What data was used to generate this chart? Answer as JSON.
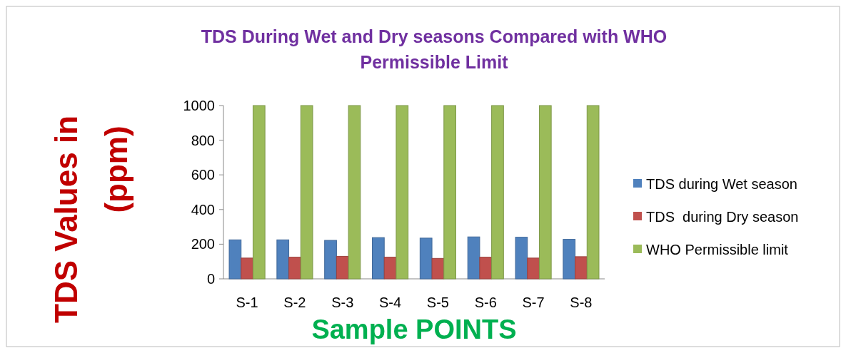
{
  "chart_data": {
    "type": "bar",
    "title": "TDS During Wet and Dry seasons  Compared with WHO Permissible Limit",
    "xlabel": "Sample POINTS",
    "ylabel": "TDS Values in (ppm)",
    "categories": [
      "S-1",
      "S-2",
      "S-3",
      "S-4",
      "S-5",
      "S-6",
      "S-7",
      "S-8"
    ],
    "series": [
      {
        "name": "TDS during Wet season",
        "color": "#4f81bd",
        "values": [
          225,
          225,
          222,
          238,
          235,
          242,
          240,
          228
        ]
      },
      {
        "name": "TDS  during Dry season",
        "color": "#c0504d",
        "values": [
          120,
          125,
          130,
          125,
          118,
          125,
          120,
          128
        ]
      },
      {
        "name": "WHO Permissible limit",
        "color": "#9bbb59",
        "values": [
          1000,
          1000,
          1000,
          1000,
          1000,
          1000,
          1000,
          1000
        ]
      }
    ],
    "ylim": [
      0,
      1000
    ],
    "yticks": [
      0,
      200,
      400,
      600,
      800,
      1000
    ],
    "grid": false,
    "legend": "right"
  }
}
